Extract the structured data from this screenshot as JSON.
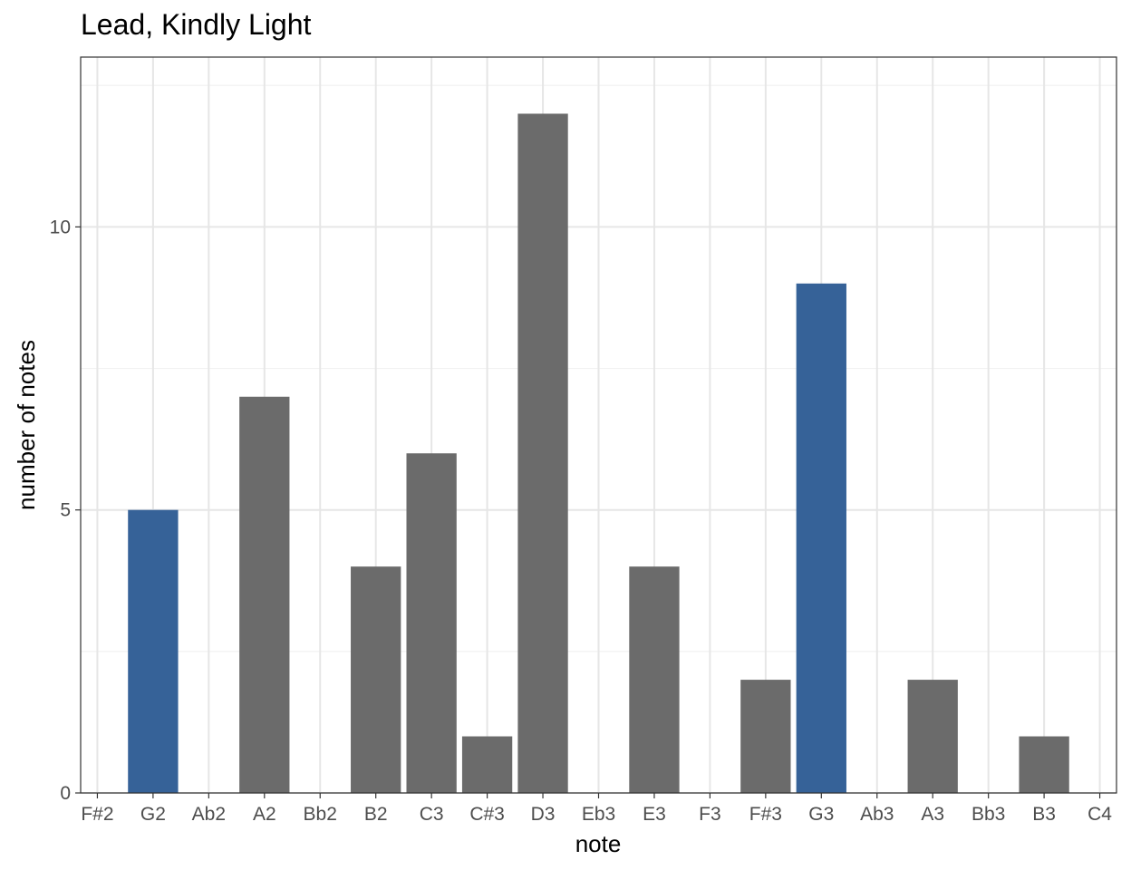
{
  "chart_data": {
    "type": "bar",
    "title": "Lead, Kindly Light",
    "xlabel": "note",
    "ylabel": "number of notes",
    "categories": [
      "F#2",
      "G2",
      "Ab2",
      "A2",
      "Bb2",
      "B2",
      "C3",
      "C#3",
      "D3",
      "Eb3",
      "E3",
      "F3",
      "F#3",
      "G3",
      "Ab3",
      "A3",
      "Bb3",
      "B3",
      "C4"
    ],
    "values": [
      0,
      5,
      0,
      7,
      0,
      4,
      6,
      1,
      12,
      0,
      4,
      0,
      2,
      9,
      0,
      2,
      0,
      1,
      0
    ],
    "highlighted": [
      false,
      true,
      false,
      false,
      false,
      false,
      false,
      false,
      false,
      false,
      false,
      false,
      false,
      true,
      false,
      false,
      false,
      false,
      false
    ],
    "ylim": [
      0,
      13
    ],
    "yticks": [
      0,
      5,
      10
    ],
    "yticks_labels": [
      "0",
      "5",
      "10"
    ],
    "grid": true,
    "legend": "none",
    "colors": {
      "default": "#6b6b6b",
      "highlight": "#366298",
      "grid_major": "#e6e6e6",
      "grid_minor": "#f2f2f2",
      "panel_border": "#333333"
    }
  }
}
